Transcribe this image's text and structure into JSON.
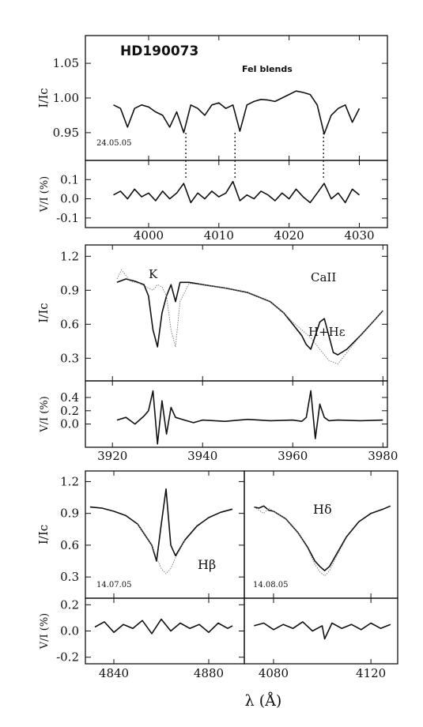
{
  "chart_data": [
    {
      "type": "line",
      "star": "HD190073",
      "annotation": "FeI blends",
      "date": "24.05.05",
      "x_ticks": [
        "4000",
        "4010",
        "4020",
        "4030"
      ],
      "xlim": [
        3991,
        4034
      ],
      "top": {
        "ylabel": "I/Ic",
        "ylim": [
          0.91,
          1.09
        ],
        "y_ticks": [
          "0.95",
          "1.00",
          "1.05"
        ],
        "series": [
          {
            "style": "solid",
            "x": [
              3995,
              3996,
              3997,
              3998,
              3999,
              4000,
              4001,
              4002,
              4003,
              4004,
              4005,
              4006,
              4007,
              4008,
              4009,
              4010,
              4011,
              4012,
              4013,
              4014,
              4015,
              4016,
              4017,
              4018,
              4019,
              4020,
              4021,
              4022,
              4023,
              4024,
              4025,
              4026,
              4027,
              4028,
              4029,
              4030
            ],
            "y": [
              0.99,
              0.985,
              0.958,
              0.985,
              0.99,
              0.987,
              0.98,
              0.975,
              0.958,
              0.98,
              0.95,
              0.99,
              0.985,
              0.975,
              0.99,
              0.993,
              0.985,
              0.99,
              0.952,
              0.99,
              0.995,
              0.998,
              0.997,
              0.995,
              1.0,
              1.005,
              1.01,
              1.008,
              1.005,
              0.99,
              0.948,
              0.975,
              0.985,
              0.99,
              0.965,
              0.985
            ]
          }
        ]
      },
      "bottom": {
        "ylabel": "V/I (%)",
        "ylim": [
          -0.15,
          0.2
        ],
        "y_ticks": [
          "-0.1",
          "0.0",
          "0.1"
        ],
        "series": [
          {
            "style": "solid",
            "x": [
              3995,
              3996,
              3997,
              3998,
              3999,
              4000,
              4001,
              4002,
              4003,
              4004,
              4005,
              4006,
              4007,
              4008,
              4009,
              4010,
              4011,
              4012,
              4013,
              4014,
              4015,
              4016,
              4017,
              4018,
              4019,
              4020,
              4021,
              4022,
              4023,
              4024,
              4025,
              4026,
              4027,
              4028,
              4029,
              4030
            ],
            "y": [
              0.02,
              0.04,
              0.0,
              0.05,
              0.01,
              0.03,
              -0.01,
              0.04,
              0.0,
              0.03,
              0.08,
              -0.02,
              0.03,
              0.0,
              0.04,
              0.01,
              0.03,
              0.09,
              -0.01,
              0.02,
              0.0,
              0.04,
              0.02,
              -0.01,
              0.03,
              0.0,
              0.05,
              0.01,
              -0.02,
              0.03,
              0.08,
              0.0,
              0.03,
              -0.02,
              0.05,
              0.02
            ]
          }
        ]
      },
      "markers_x": [
        4005.3,
        4012.3,
        4024.9
      ]
    },
    {
      "type": "line",
      "annotation": "CaII",
      "line_labels": [
        "K",
        "H+Hε"
      ],
      "x_ticks": [
        "3920",
        "3940",
        "3960",
        "3980"
      ],
      "xlim": [
        3914,
        3981
      ],
      "top": {
        "ylabel": "I/Ic",
        "ylim": [
          0.1,
          1.3
        ],
        "y_ticks": [
          "0.3",
          "0.6",
          "0.9",
          "1.2"
        ],
        "series": [
          {
            "style": "solid",
            "x": [
              3921,
              3923,
              3925,
              3927,
              3928,
              3929,
              3930,
              3931,
              3932,
              3933,
              3934,
              3935,
              3937,
              3940,
              3945,
              3950,
              3955,
              3958,
              3960,
              3962,
              3963,
              3964,
              3965,
              3966,
              3967,
              3968,
              3969,
              3970,
              3972,
              3975,
              3978,
              3980
            ],
            "y": [
              0.97,
              1.0,
              0.98,
              0.95,
              0.85,
              0.55,
              0.4,
              0.7,
              0.85,
              0.95,
              0.8,
              0.97,
              0.97,
              0.95,
              0.92,
              0.88,
              0.8,
              0.7,
              0.6,
              0.5,
              0.42,
              0.38,
              0.5,
              0.62,
              0.65,
              0.5,
              0.35,
              0.33,
              0.38,
              0.5,
              0.63,
              0.72
            ]
          },
          {
            "style": "dotted",
            "x": [
              3921,
              3922,
              3924,
              3926,
              3928,
              3929,
              3930,
              3931,
              3932,
              3933,
              3934,
              3935,
              3937,
              3940,
              3945,
              3950,
              3955,
              3958,
              3960,
              3962,
              3964,
              3966,
              3968,
              3970,
              3972,
              3975,
              3978,
              3980
            ],
            "y": [
              1.0,
              1.08,
              0.98,
              0.96,
              0.92,
              0.9,
              0.95,
              0.93,
              0.85,
              0.55,
              0.4,
              0.8,
              0.96,
              0.95,
              0.92,
              0.88,
              0.8,
              0.7,
              0.62,
              0.55,
              0.48,
              0.38,
              0.28,
              0.25,
              0.35,
              0.5,
              0.63,
              0.72
            ]
          }
        ]
      },
      "bottom": {
        "ylabel": "V/I (%)",
        "ylim": [
          -0.35,
          0.65
        ],
        "y_ticks": [
          "0.0",
          "0.2",
          "0.4"
        ],
        "series": [
          {
            "style": "solid",
            "x": [
              3921,
              3923,
              3925,
              3927,
              3928,
              3929,
              3930,
              3931,
              3932,
              3933,
              3934,
              3936,
              3938,
              3940,
              3945,
              3950,
              3955,
              3960,
              3962,
              3963,
              3964,
              3965,
              3966,
              3967,
              3968,
              3970,
              3975,
              3980
            ],
            "y": [
              0.06,
              0.1,
              0.0,
              0.12,
              0.2,
              0.5,
              -0.3,
              0.35,
              -0.15,
              0.25,
              0.1,
              0.06,
              0.02,
              0.06,
              0.04,
              0.07,
              0.05,
              0.06,
              0.04,
              0.1,
              0.5,
              -0.22,
              0.3,
              0.1,
              0.05,
              0.06,
              0.05,
              0.06
            ]
          }
        ]
      }
    },
    {
      "type": "line",
      "date": "14.07.05",
      "line_labels": [
        "Hβ"
      ],
      "x_ticks": [
        "4840",
        "4880"
      ],
      "xlim": [
        4828,
        4895
      ],
      "top": {
        "ylabel": "I/Ic",
        "ylim": [
          0.1,
          1.3
        ],
        "y_ticks": [
          "0.3",
          "0.6",
          "0.9",
          "1.2"
        ],
        "series": [
          {
            "style": "solid",
            "x": [
              4830,
              4835,
              4840,
              4845,
              4850,
              4853,
              4856,
              4858,
              4860,
              4862,
              4864,
              4866,
              4870,
              4875,
              4880,
              4885,
              4890
            ],
            "y": [
              0.96,
              0.95,
              0.92,
              0.88,
              0.8,
              0.7,
              0.6,
              0.45,
              0.8,
              1.13,
              0.6,
              0.5,
              0.65,
              0.78,
              0.86,
              0.91,
              0.94
            ]
          },
          {
            "style": "dotted",
            "x": [
              4850,
              4853,
              4856,
              4858,
              4860,
              4862,
              4864,
              4866,
              4870
            ],
            "y": [
              0.8,
              0.7,
              0.6,
              0.48,
              0.38,
              0.33,
              0.38,
              0.48,
              0.65
            ]
          }
        ]
      },
      "bottom": {
        "ylabel": "V/I (%)",
        "ylim": [
          -0.25,
          0.25
        ],
        "y_ticks": [
          "-0.2",
          "0.0",
          "0.2"
        ],
        "series": [
          {
            "style": "solid",
            "x": [
              4832,
              4836,
              4840,
              4844,
              4848,
              4852,
              4856,
              4860,
              4864,
              4868,
              4872,
              4876,
              4880,
              4884,
              4888,
              4890
            ],
            "y": [
              0.03,
              0.07,
              -0.01,
              0.05,
              0.02,
              0.08,
              -0.02,
              0.09,
              0.0,
              0.06,
              0.02,
              0.05,
              -0.01,
              0.06,
              0.02,
              0.04
            ]
          }
        ]
      }
    },
    {
      "type": "line",
      "date": "14.08.05",
      "line_labels": [
        "Hδ"
      ],
      "x_ticks": [
        "4080",
        "4120"
      ],
      "xlim": [
        4068,
        4131
      ],
      "top": {
        "ylabel": "",
        "ylim": [
          0.1,
          1.3
        ],
        "y_ticks": [],
        "series": [
          {
            "style": "solid",
            "x": [
              4072,
              4074,
              4076,
              4078,
              4080,
              4085,
              4090,
              4094,
              4097,
              4099,
              4101,
              4103,
              4106,
              4110,
              4115,
              4120,
              4125,
              4128
            ],
            "y": [
              0.96,
              0.95,
              0.97,
              0.93,
              0.92,
              0.85,
              0.72,
              0.58,
              0.45,
              0.4,
              0.36,
              0.4,
              0.52,
              0.68,
              0.82,
              0.9,
              0.94,
              0.97
            ]
          },
          {
            "style": "dotted",
            "x": [
              4072,
              4074,
              4076,
              4078,
              4080,
              4085,
              4090,
              4094,
              4097,
              4099,
              4101,
              4103,
              4106,
              4110
            ],
            "y": [
              0.96,
              0.93,
              0.9,
              0.95,
              0.92,
              0.85,
              0.72,
              0.57,
              0.42,
              0.35,
              0.31,
              0.36,
              0.5,
              0.67
            ]
          }
        ]
      },
      "bottom": {
        "ylabel": "",
        "ylim": [
          -0.25,
          0.25
        ],
        "y_ticks": [],
        "series": [
          {
            "style": "solid",
            "x": [
              4072,
              4076,
              4080,
              4084,
              4088,
              4092,
              4096,
              4100,
              4101,
              4104,
              4108,
              4112,
              4116,
              4120,
              4124,
              4128
            ],
            "y": [
              0.04,
              0.06,
              0.01,
              0.05,
              0.02,
              0.07,
              0.0,
              0.04,
              -0.06,
              0.06,
              0.02,
              0.05,
              0.01,
              0.06,
              0.02,
              0.05
            ]
          }
        ]
      }
    }
  ],
  "xlabel": "λ  (Å)"
}
